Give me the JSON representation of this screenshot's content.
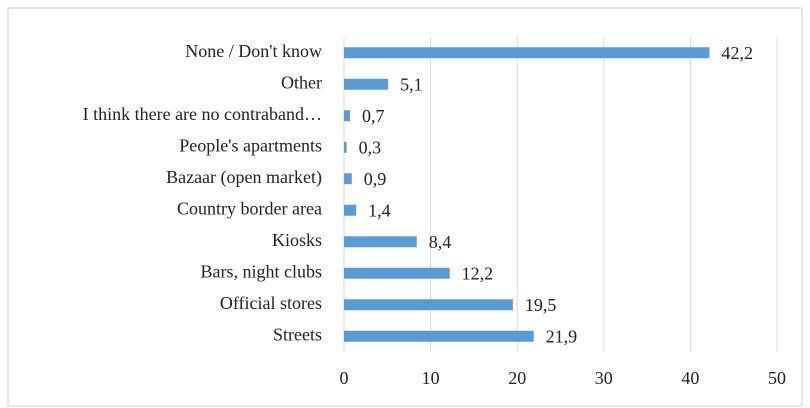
{
  "chart_data": {
    "type": "bar",
    "orientation": "horizontal",
    "categories": [
      "None / Don't know",
      "Other",
      "I think there are no contraband…",
      "People's apartments",
      "Bazaar (open market)",
      "Country border area",
      "Kiosks",
      "Bars, night clubs",
      "Official stores",
      "Streets"
    ],
    "values": [
      42.2,
      5.1,
      0.7,
      0.3,
      0.9,
      1.4,
      8.4,
      12.2,
      19.5,
      21.9
    ],
    "value_labels": [
      "42,2",
      "5,1",
      "0,7",
      "0,3",
      "0,9",
      "1,4",
      "8,4",
      "12,2",
      "19,5",
      "21,9"
    ],
    "color": "#5b9bd5",
    "xlim": [
      0,
      50
    ],
    "xticks": [
      0,
      10,
      20,
      30,
      40,
      50
    ],
    "grid": true
  }
}
